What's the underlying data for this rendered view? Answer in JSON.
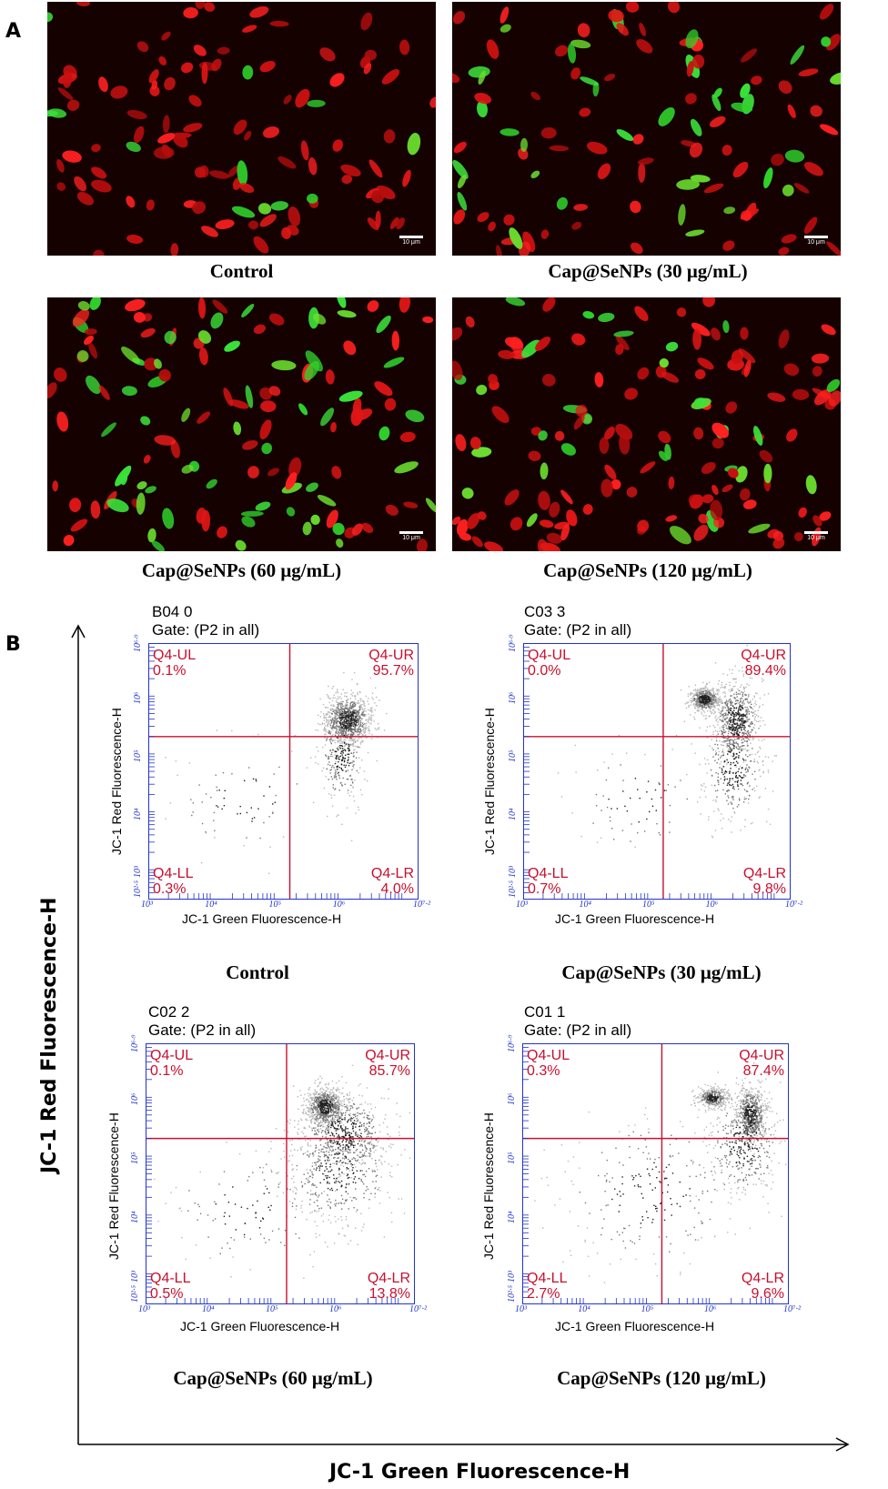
{
  "panel_a": {
    "letter": "A",
    "scale_label": "10 μm",
    "images": [
      {
        "caption": "Control"
      },
      {
        "caption": "Cap@SeNPs (30 μg/mL)"
      },
      {
        "caption": "Cap@SeNPs (60 μg/mL)"
      },
      {
        "caption": "Cap@SeNPs (120 μg/mL)"
      }
    ]
  },
  "panel_b": {
    "letter": "B",
    "y_axis_title": "JC-1 Red Fluorescence-H",
    "x_axis_title": "JC-1 Green Fluorescence-H",
    "plot_xlabel": "JC-1 Green Fluorescence-H",
    "plot_ylabel": "JC-1 Red Fluorescence-H",
    "gate": "Gate: (P2 in all)",
    "x_ticks": [
      "10³",
      "10⁴",
      "10⁵",
      "10⁶",
      "10⁷·²"
    ],
    "y_ticks": [
      "10²·⁵",
      "10³",
      "10⁴",
      "10⁵",
      "10⁶",
      "10⁶·⁹"
    ],
    "quadrant_names": {
      "ul": "Q4-UL",
      "ur": "Q4-UR",
      "ll": "Q4-LL",
      "lr": "Q4-LR"
    },
    "colors": {
      "frame": "#2233cc",
      "gate_line": "#c8102e",
      "quadrant_text": "#c8102e"
    }
  },
  "chart_data": [
    {
      "type": "scatter",
      "title": "B04 0",
      "caption": "Control",
      "x_scale": "log",
      "y_scale": "log",
      "xlim": [
        1000,
        15848932
      ],
      "ylim": [
        316,
        7943282
      ],
      "quadrants": {
        "ul": "0.1%",
        "ur": "95.7%",
        "ll": "0.3%",
        "lr": "4.0%"
      }
    },
    {
      "type": "scatter",
      "title": "C03 3",
      "caption": "Cap@SeNPs (30 μg/mL)",
      "x_scale": "log",
      "y_scale": "log",
      "xlim": [
        1000,
        15848932
      ],
      "ylim": [
        316,
        7943282
      ],
      "quadrants": {
        "ul": "0.0%",
        "ur": "89.4%",
        "ll": "0.7%",
        "lr": "9.8%"
      }
    },
    {
      "type": "scatter",
      "title": "C02 2",
      "caption": "Cap@SeNPs (60 μg/mL)",
      "x_scale": "log",
      "y_scale": "log",
      "xlim": [
        1000,
        15848932
      ],
      "ylim": [
        316,
        7943282
      ],
      "quadrants": {
        "ul": "0.1%",
        "ur": "85.7%",
        "ll": "0.5%",
        "lr": "13.8%"
      }
    },
    {
      "type": "scatter",
      "title": "C01 1",
      "caption": "Cap@SeNPs (120 μg/mL)",
      "x_scale": "log",
      "y_scale": "log",
      "xlim": [
        1000,
        15848932
      ],
      "ylim": [
        316,
        7943282
      ],
      "quadrants": {
        "ul": "0.3%",
        "ur": "87.4%",
        "ll": "2.7%",
        "lr": "9.6%"
      }
    }
  ]
}
